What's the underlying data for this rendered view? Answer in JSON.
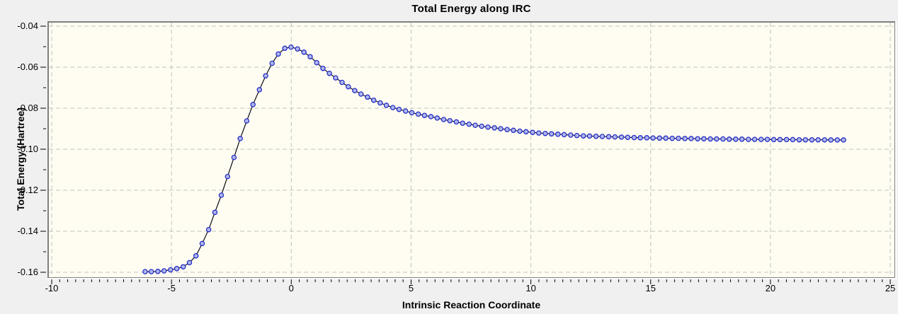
{
  "style": {
    "background": "#f0f0f0",
    "plot_bg": "#fffdf2",
    "grid_color": "#c2c2c2",
    "border_dark": "#7f7f7f",
    "border_light": "#ffffff",
    "axis_color": "#000000",
    "text_color": "#000000"
  },
  "chart_data": {
    "type": "line",
    "title": "Total Energy along IRC",
    "xlabel": "Intrinsic Reaction Coordinate",
    "ylabel": "Total Energy (Hartree)",
    "xlim": [
      -10.2,
      25.2
    ],
    "ylim": [
      -0.163,
      -0.038
    ],
    "grid": "dashed-on-major-ticks",
    "legend": "none",
    "x_major_ticks": [
      -10,
      -5,
      0,
      5,
      10,
      15,
      20,
      25
    ],
    "x_tick_labels": [
      "-10",
      "-5",
      "0",
      "5",
      "10",
      "15",
      "20",
      "25"
    ],
    "x_minor_tick_step": 0.3333,
    "y_major_ticks": [
      -0.04,
      -0.06,
      -0.08,
      -0.1,
      -0.12,
      -0.14,
      -0.16
    ],
    "y_tick_labels": [
      "-0.04",
      "-0.06",
      "-0.08",
      "-0.10",
      "-0.12",
      "-0.14",
      "-0.16"
    ],
    "y_minor_tick_step": 0.01,
    "series": [
      {
        "name": "Total Energy",
        "marker": "circle",
        "line_color": "#0a0a14",
        "marker_fill": "#aeb9ee",
        "marker_stroke": "#2a2ec4",
        "x": [
          -6.1,
          -5.84,
          -5.57,
          -5.31,
          -5.04,
          -4.78,
          -4.51,
          -4.25,
          -3.98,
          -3.72,
          -3.45,
          -3.19,
          -2.92,
          -2.66,
          -2.39,
          -2.13,
          -1.86,
          -1.6,
          -1.33,
          -1.07,
          -0.8,
          -0.54,
          -0.27,
          -0.01,
          0.26,
          0.53,
          0.79,
          1.06,
          1.32,
          1.59,
          1.85,
          2.12,
          2.38,
          2.65,
          2.91,
          3.18,
          3.44,
          3.71,
          3.97,
          4.24,
          4.5,
          4.77,
          5.03,
          5.3,
          5.56,
          5.83,
          6.09,
          6.36,
          6.62,
          6.89,
          7.15,
          7.42,
          7.68,
          7.95,
          8.21,
          8.48,
          8.74,
          9.01,
          9.27,
          9.54,
          9.8,
          10.07,
          10.33,
          10.6,
          10.86,
          11.13,
          11.39,
          11.66,
          11.92,
          12.19,
          12.45,
          12.72,
          12.98,
          13.25,
          13.51,
          13.78,
          14.04,
          14.31,
          14.57,
          14.84,
          15.1,
          15.37,
          15.63,
          15.9,
          16.16,
          16.43,
          16.69,
          16.96,
          17.22,
          17.49,
          17.75,
          18.02,
          18.28,
          18.55,
          18.81,
          19.08,
          19.34,
          19.61,
          19.87,
          20.14,
          20.4,
          20.67,
          20.93,
          21.2,
          21.46,
          21.73,
          21.99,
          22.26,
          22.52,
          22.79,
          23.05
        ],
        "y": [
          -0.1597,
          -0.1597,
          -0.1596,
          -0.1593,
          -0.1588,
          -0.1582,
          -0.1573,
          -0.1553,
          -0.152,
          -0.146,
          -0.1392,
          -0.1308,
          -0.1224,
          -0.1133,
          -0.104,
          -0.0948,
          -0.0862,
          -0.0782,
          -0.071,
          -0.0642,
          -0.0581,
          -0.0536,
          -0.0508,
          -0.0502,
          -0.0511,
          -0.0527,
          -0.0549,
          -0.0578,
          -0.0606,
          -0.063,
          -0.0652,
          -0.0674,
          -0.0695,
          -0.0714,
          -0.0731,
          -0.0746,
          -0.0761,
          -0.0774,
          -0.0786,
          -0.0797,
          -0.0806,
          -0.0814,
          -0.0822,
          -0.0829,
          -0.0835,
          -0.0841,
          -0.0848,
          -0.0855,
          -0.0861,
          -0.0867,
          -0.0873,
          -0.0878,
          -0.0883,
          -0.0888,
          -0.0892,
          -0.0896,
          -0.09,
          -0.0904,
          -0.0908,
          -0.0912,
          -0.0915,
          -0.0918,
          -0.0921,
          -0.0923,
          -0.0925,
          -0.0927,
          -0.0929,
          -0.0931,
          -0.0933,
          -0.0935,
          -0.0936,
          -0.0937,
          -0.0938,
          -0.0939,
          -0.094,
          -0.0941,
          -0.0942,
          -0.0943,
          -0.0944,
          -0.0944,
          -0.0945,
          -0.0946,
          -0.0946,
          -0.0947,
          -0.0947,
          -0.0948,
          -0.0948,
          -0.0949,
          -0.0949,
          -0.095,
          -0.095,
          -0.095,
          -0.0951,
          -0.0951,
          -0.0951,
          -0.0952,
          -0.0952,
          -0.0952,
          -0.0952,
          -0.0953,
          -0.0953,
          -0.0953,
          -0.0953,
          -0.0954,
          -0.0954,
          -0.0954,
          -0.0954,
          -0.0954,
          -0.0955,
          -0.0955,
          -0.0955
        ]
      }
    ]
  }
}
